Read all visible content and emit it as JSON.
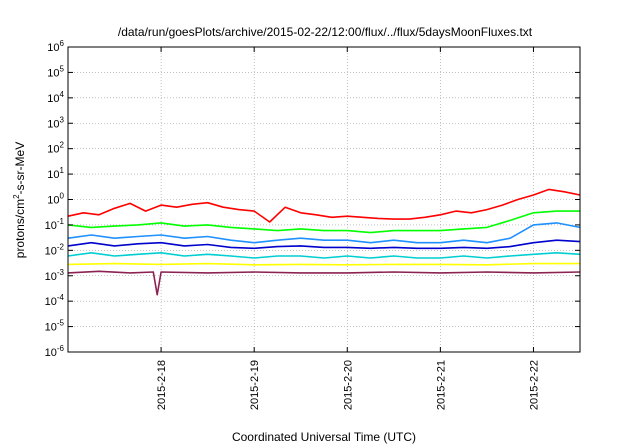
{
  "chart_data": {
    "type": "line",
    "title": "/data/run/goesPlots/archive/2015-02-22/12:00/flux/../flux/5daysMoonFluxes.txt",
    "xlabel": "Coordinated Universal Time (UTC)",
    "ylabel": "protons/cm2-s-sr-MeV",
    "ylabel_parts": {
      "pre": "protons/cm",
      "sup": "2",
      "post": "-s-sr-MeV"
    },
    "y_scale": "log",
    "ylim": [
      1e-06,
      1000000.0
    ],
    "xlim": [
      "2015-02-17T00:00",
      "2015-02-22T12:00"
    ],
    "y_ticks": [
      {
        "value": 1e-06,
        "base": "10",
        "exp": "-6"
      },
      {
        "value": 1e-05,
        "base": "10",
        "exp": "-5"
      },
      {
        "value": 0.0001,
        "base": "10",
        "exp": "-4"
      },
      {
        "value": 0.001,
        "base": "10",
        "exp": "-3"
      },
      {
        "value": 0.01,
        "base": "10",
        "exp": "-2"
      },
      {
        "value": 0.1,
        "base": "10",
        "exp": "-1"
      },
      {
        "value": 1.0,
        "base": "10",
        "exp": "0"
      },
      {
        "value": 10.0,
        "base": "10",
        "exp": "1"
      },
      {
        "value": 100.0,
        "base": "10",
        "exp": "2"
      },
      {
        "value": 1000.0,
        "base": "10",
        "exp": "3"
      },
      {
        "value": 10000.0,
        "base": "10",
        "exp": "4"
      },
      {
        "value": 100000.0,
        "base": "10",
        "exp": "5"
      },
      {
        "value": 1000000.0,
        "base": "10",
        "exp": "6"
      }
    ],
    "x_ticks": [
      {
        "value": "2015-02-18T00:00",
        "label": "2015-2-18"
      },
      {
        "value": "2015-02-19T00:00",
        "label": "2015-2-19"
      },
      {
        "value": "2015-02-20T00:00",
        "label": "2015-2-20"
      },
      {
        "value": "2015-02-21T00:00",
        "label": "2015-2-21"
      },
      {
        "value": "2015-02-22T00:00",
        "label": "2015-2-22"
      }
    ],
    "grid": true,
    "legend": "none",
    "series": [
      {
        "color": "#ff0000",
        "points": [
          [
            "2015-02-17T00:00",
            0.22
          ],
          [
            "2015-02-17T04:00",
            0.3
          ],
          [
            "2015-02-17T08:00",
            0.25
          ],
          [
            "2015-02-17T12:00",
            0.45
          ],
          [
            "2015-02-17T16:00",
            0.7
          ],
          [
            "2015-02-17T20:00",
            0.35
          ],
          [
            "2015-02-18T00:00",
            0.6
          ],
          [
            "2015-02-18T04:00",
            0.5
          ],
          [
            "2015-02-18T08:00",
            0.65
          ],
          [
            "2015-02-18T12:00",
            0.75
          ],
          [
            "2015-02-18T16:00",
            0.5
          ],
          [
            "2015-02-18T20:00",
            0.4
          ],
          [
            "2015-02-19T00:00",
            0.35
          ],
          [
            "2015-02-19T04:00",
            0.13
          ],
          [
            "2015-02-19T08:00",
            0.5
          ],
          [
            "2015-02-19T12:00",
            0.3
          ],
          [
            "2015-02-19T16:00",
            0.25
          ],
          [
            "2015-02-19T20:00",
            0.2
          ],
          [
            "2015-02-20T00:00",
            0.22
          ],
          [
            "2015-02-20T04:00",
            0.2
          ],
          [
            "2015-02-20T08:00",
            0.18
          ],
          [
            "2015-02-20T12:00",
            0.17
          ],
          [
            "2015-02-20T16:00",
            0.17
          ],
          [
            "2015-02-20T20:00",
            0.2
          ],
          [
            "2015-02-21T00:00",
            0.25
          ],
          [
            "2015-02-21T04:00",
            0.35
          ],
          [
            "2015-02-21T08:00",
            0.3
          ],
          [
            "2015-02-21T12:00",
            0.4
          ],
          [
            "2015-02-21T16:00",
            0.6
          ],
          [
            "2015-02-21T20:00",
            1.0
          ],
          [
            "2015-02-22T00:00",
            1.5
          ],
          [
            "2015-02-22T04:00",
            2.5
          ],
          [
            "2015-02-22T08:00",
            2.0
          ],
          [
            "2015-02-22T12:00",
            1.5
          ]
        ]
      },
      {
        "color": "#00ff00",
        "points": [
          [
            "2015-02-17T00:00",
            0.1
          ],
          [
            "2015-02-17T06:00",
            0.08
          ],
          [
            "2015-02-17T12:00",
            0.09
          ],
          [
            "2015-02-17T18:00",
            0.1
          ],
          [
            "2015-02-18T00:00",
            0.12
          ],
          [
            "2015-02-18T06:00",
            0.09
          ],
          [
            "2015-02-18T12:00",
            0.1
          ],
          [
            "2015-02-18T18:00",
            0.08
          ],
          [
            "2015-02-19T00:00",
            0.07
          ],
          [
            "2015-02-19T06:00",
            0.06
          ],
          [
            "2015-02-19T12:00",
            0.07
          ],
          [
            "2015-02-19T18:00",
            0.06
          ],
          [
            "2015-02-20T00:00",
            0.06
          ],
          [
            "2015-02-20T06:00",
            0.05
          ],
          [
            "2015-02-20T12:00",
            0.06
          ],
          [
            "2015-02-20T18:00",
            0.06
          ],
          [
            "2015-02-21T00:00",
            0.06
          ],
          [
            "2015-02-21T06:00",
            0.07
          ],
          [
            "2015-02-21T12:00",
            0.08
          ],
          [
            "2015-02-21T18:00",
            0.15
          ],
          [
            "2015-02-22T00:00",
            0.3
          ],
          [
            "2015-02-22T06:00",
            0.35
          ],
          [
            "2015-02-22T12:00",
            0.35
          ]
        ]
      },
      {
        "color": "#1e90ff",
        "points": [
          [
            "2015-02-17T00:00",
            0.03
          ],
          [
            "2015-02-17T06:00",
            0.04
          ],
          [
            "2015-02-17T12:00",
            0.03
          ],
          [
            "2015-02-17T18:00",
            0.035
          ],
          [
            "2015-02-18T00:00",
            0.04
          ],
          [
            "2015-02-18T06:00",
            0.03
          ],
          [
            "2015-02-18T12:00",
            0.035
          ],
          [
            "2015-02-18T18:00",
            0.025
          ],
          [
            "2015-02-19T00:00",
            0.02
          ],
          [
            "2015-02-19T06:00",
            0.025
          ],
          [
            "2015-02-19T12:00",
            0.03
          ],
          [
            "2015-02-19T18:00",
            0.025
          ],
          [
            "2015-02-20T00:00",
            0.025
          ],
          [
            "2015-02-20T06:00",
            0.02
          ],
          [
            "2015-02-20T12:00",
            0.025
          ],
          [
            "2015-02-20T18:00",
            0.02
          ],
          [
            "2015-02-21T00:00",
            0.02
          ],
          [
            "2015-02-21T06:00",
            0.025
          ],
          [
            "2015-02-21T12:00",
            0.02
          ],
          [
            "2015-02-21T18:00",
            0.03
          ],
          [
            "2015-02-22T00:00",
            0.1
          ],
          [
            "2015-02-22T06:00",
            0.12
          ],
          [
            "2015-02-22T12:00",
            0.08
          ]
        ]
      },
      {
        "color": "#0000cd",
        "points": [
          [
            "2015-02-17T00:00",
            0.015
          ],
          [
            "2015-02-17T06:00",
            0.02
          ],
          [
            "2015-02-17T12:00",
            0.015
          ],
          [
            "2015-02-17T18:00",
            0.018
          ],
          [
            "2015-02-18T00:00",
            0.02
          ],
          [
            "2015-02-18T06:00",
            0.015
          ],
          [
            "2015-02-18T12:00",
            0.017
          ],
          [
            "2015-02-18T18:00",
            0.013
          ],
          [
            "2015-02-19T00:00",
            0.012
          ],
          [
            "2015-02-19T06:00",
            0.014
          ],
          [
            "2015-02-19T12:00",
            0.015
          ],
          [
            "2015-02-19T18:00",
            0.013
          ],
          [
            "2015-02-20T00:00",
            0.013
          ],
          [
            "2015-02-20T06:00",
            0.012
          ],
          [
            "2015-02-20T12:00",
            0.013
          ],
          [
            "2015-02-20T18:00",
            0.012
          ],
          [
            "2015-02-21T00:00",
            0.012
          ],
          [
            "2015-02-21T06:00",
            0.013
          ],
          [
            "2015-02-21T12:00",
            0.012
          ],
          [
            "2015-02-21T18:00",
            0.014
          ],
          [
            "2015-02-22T00:00",
            0.02
          ],
          [
            "2015-02-22T06:00",
            0.025
          ],
          [
            "2015-02-22T12:00",
            0.022
          ]
        ]
      },
      {
        "color": "#00ced1",
        "points": [
          [
            "2015-02-17T00:00",
            0.006
          ],
          [
            "2015-02-17T06:00",
            0.008
          ],
          [
            "2015-02-17T12:00",
            0.006
          ],
          [
            "2015-02-17T18:00",
            0.007
          ],
          [
            "2015-02-18T00:00",
            0.008
          ],
          [
            "2015-02-18T06:00",
            0.006
          ],
          [
            "2015-02-18T12:00",
            0.007
          ],
          [
            "2015-02-18T18:00",
            0.006
          ],
          [
            "2015-02-19T00:00",
            0.005
          ],
          [
            "2015-02-19T06:00",
            0.006
          ],
          [
            "2015-02-19T12:00",
            0.006
          ],
          [
            "2015-02-19T18:00",
            0.005
          ],
          [
            "2015-02-20T00:00",
            0.006
          ],
          [
            "2015-02-20T06:00",
            0.005
          ],
          [
            "2015-02-20T12:00",
            0.006
          ],
          [
            "2015-02-20T18:00",
            0.005
          ],
          [
            "2015-02-21T00:00",
            0.005
          ],
          [
            "2015-02-21T06:00",
            0.006
          ],
          [
            "2015-02-21T12:00",
            0.005
          ],
          [
            "2015-02-21T18:00",
            0.006
          ],
          [
            "2015-02-22T00:00",
            0.007
          ],
          [
            "2015-02-22T06:00",
            0.008
          ],
          [
            "2015-02-22T12:00",
            0.007
          ]
        ]
      },
      {
        "color": "#ffff00",
        "points": [
          [
            "2015-02-17T00:00",
            0.0028
          ],
          [
            "2015-02-17T12:00",
            0.003
          ],
          [
            "2015-02-18T00:00",
            0.0028
          ],
          [
            "2015-02-18T12:00",
            0.003
          ],
          [
            "2015-02-19T00:00",
            0.0027
          ],
          [
            "2015-02-19T12:00",
            0.0028
          ],
          [
            "2015-02-20T00:00",
            0.0027
          ],
          [
            "2015-02-20T12:00",
            0.0028
          ],
          [
            "2015-02-21T00:00",
            0.0028
          ],
          [
            "2015-02-21T12:00",
            0.0027
          ],
          [
            "2015-02-22T00:00",
            0.003
          ],
          [
            "2015-02-22T12:00",
            0.003
          ]
        ]
      },
      {
        "color": "#8b2252",
        "points": [
          [
            "2015-02-17T00:00",
            0.0013
          ],
          [
            "2015-02-17T08:00",
            0.0015
          ],
          [
            "2015-02-17T16:00",
            0.0013
          ],
          [
            "2015-02-17T22:00",
            0.0014
          ],
          [
            "2015-02-17T23:00",
            0.00018
          ],
          [
            "2015-02-18T00:00",
            0.0014
          ],
          [
            "2015-02-18T12:00",
            0.0013
          ],
          [
            "2015-02-19T00:00",
            0.0014
          ],
          [
            "2015-02-19T12:00",
            0.0013
          ],
          [
            "2015-02-20T00:00",
            0.0013
          ],
          [
            "2015-02-20T12:00",
            0.0014
          ],
          [
            "2015-02-21T00:00",
            0.0013
          ],
          [
            "2015-02-21T12:00",
            0.0014
          ],
          [
            "2015-02-22T00:00",
            0.0013
          ],
          [
            "2015-02-22T12:00",
            0.0014
          ]
        ]
      }
    ]
  }
}
